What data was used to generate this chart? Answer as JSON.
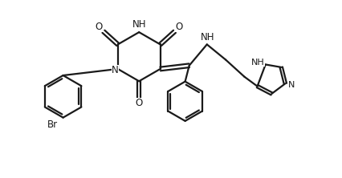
{
  "background_color": "#ffffff",
  "line_color": "#1a1a1a",
  "line_width": 1.6,
  "font_size": 8.5,
  "figsize": [
    4.27,
    2.22
  ],
  "dpi": 100,
  "xlim": [
    0,
    10
  ],
  "ylim": [
    0,
    5.2
  ]
}
